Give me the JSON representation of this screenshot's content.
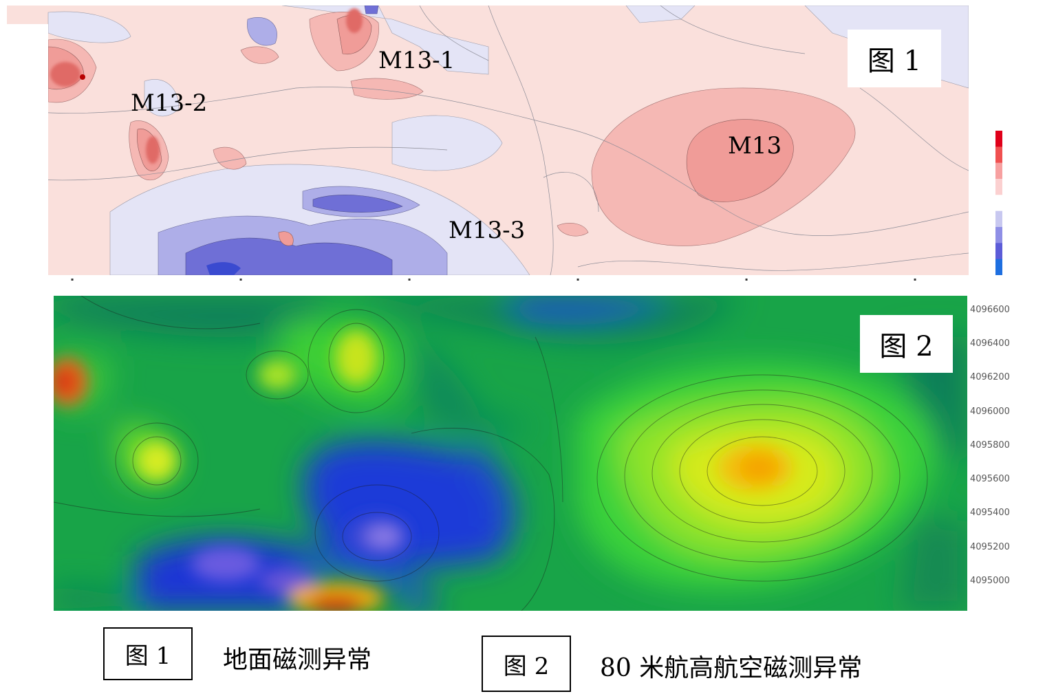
{
  "figure1": {
    "tag": "图 1",
    "labels": {
      "m13": "M13",
      "m13_1": "M13-1",
      "m13_2": "M13-2",
      "m13_3": "M13-3"
    },
    "colorbar": [
      "#e0001a",
      "#f05050",
      "#f7a0a0",
      "#fbd0d0",
      "#ffffff",
      "#c8c8f0",
      "#8f8fe6",
      "#5c5cd8",
      "#1e6fe0"
    ]
  },
  "figure2": {
    "tag": "图 2",
    "y_ticks": [
      "4096600",
      "4096400",
      "4096200",
      "4096000",
      "4095800",
      "4095600",
      "4095400",
      "4095200",
      "4095000"
    ]
  },
  "captions": [
    {
      "tag": "图 1",
      "text": "地面磁测异常"
    },
    {
      "tag": "图 2",
      "text": "80 米航高航空磁测异常"
    }
  ]
}
